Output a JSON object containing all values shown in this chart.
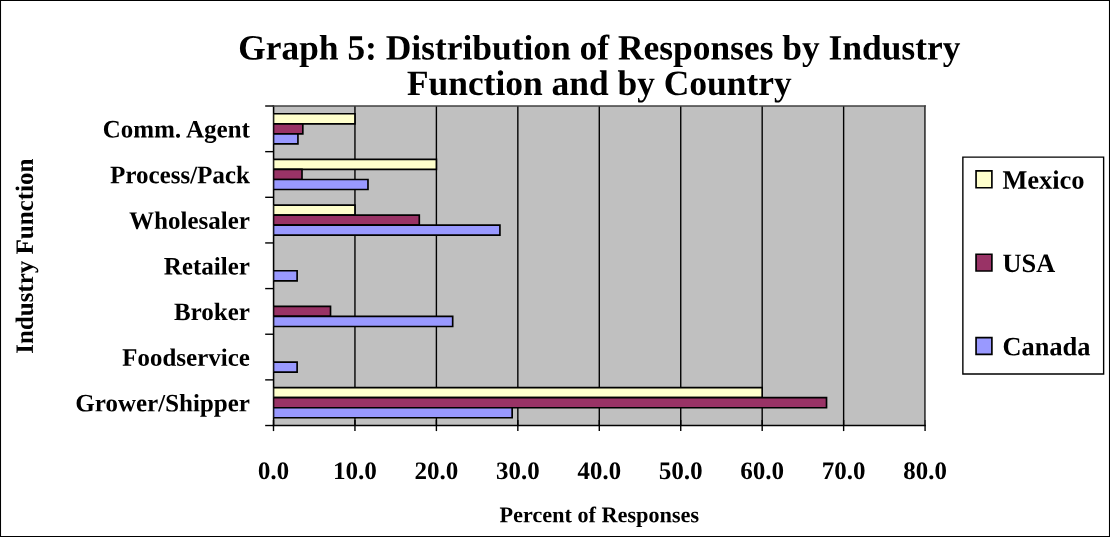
{
  "chart_data": {
    "type": "bar",
    "orientation": "horizontal",
    "title": "Graph 5: Distribution of Responses by Industry\nFunction and by Country",
    "xlabel": "Percent of Responses",
    "ylabel": "Industry Function",
    "categories": [
      "Comm. Agent",
      "Process/Pack",
      "Wholesaler",
      "Retailer",
      "Broker",
      "Foodservice",
      "Grower/Shipper"
    ],
    "series": [
      {
        "name": "Mexico",
        "color": "#ffffcc",
        "values": [
          10.0,
          20.0,
          10.0,
          null,
          null,
          null,
          60.0
        ]
      },
      {
        "name": "USA",
        "color": "#993366",
        "values": [
          3.6,
          3.5,
          17.9,
          null,
          7.0,
          null,
          67.9
        ]
      },
      {
        "name": "Canada",
        "color": "#9999ff",
        "values": [
          3.0,
          11.6,
          27.8,
          2.9,
          22.0,
          2.9,
          29.3
        ]
      }
    ],
    "xlim": [
      0,
      80
    ],
    "xticks": [
      {
        "value": 0,
        "label": "0.0"
      },
      {
        "value": 10,
        "label": "10.0"
      },
      {
        "value": 20,
        "label": "20.0"
      },
      {
        "value": 30,
        "label": "30.0"
      },
      {
        "value": 40,
        "label": "40.0"
      },
      {
        "value": 50,
        "label": "50.0"
      },
      {
        "value": 60,
        "label": "60.0"
      },
      {
        "value": 70,
        "label": "70.0"
      },
      {
        "value": 80,
        "label": "80.0"
      }
    ],
    "grid": "x",
    "legend": "right"
  }
}
